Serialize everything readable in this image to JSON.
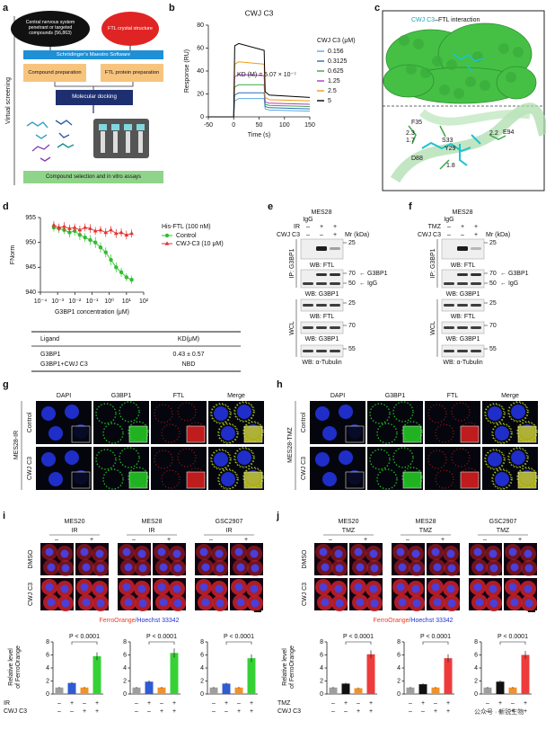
{
  "panel_a": {
    "letter": "a",
    "side_label": "Virtual screening",
    "nodes": [
      "Central nervous system penetrant or targeted compounds (56,863)",
      "FTL crystal structure",
      "Schrödinger's Maestro Software",
      "Compound preparation",
      "FTL protein preparation",
      "Molecular docking",
      "Compound selection and in vitro assays"
    ]
  },
  "panel_c": {
    "letter": "c",
    "title_parts": [
      "CWJ C3",
      "–FTL interaction"
    ],
    "labels": [
      "F35",
      "2.3",
      "1.7",
      "S33",
      "Y29",
      "D88",
      "1.8",
      "2.2",
      "E94"
    ]
  },
  "panel_d_table": {
    "header": [
      "Ligand",
      "KD(μM)"
    ],
    "rows": [
      [
        "G3BP1",
        "0.43 ± 0.57"
      ],
      [
        "G3BP1+CWJ C3",
        "NBD"
      ]
    ]
  },
  "panel_e": {
    "letter": "e",
    "cell": "MES28",
    "igg": "IgG",
    "treatment": {
      "label": "IR",
      "signs": [
        "–",
        "+",
        "+"
      ]
    },
    "drug": {
      "label": "CWJ C3",
      "signs": [
        "–",
        "–",
        "+"
      ]
    },
    "mr": "Mr (kDa)",
    "ip_label": "IP: G3BP1",
    "wcl_label": "WCL",
    "ip_blots": [
      {
        "markers": [
          "25"
        ],
        "wb": "WB: FTL"
      },
      {
        "markers": [
          "70",
          "50"
        ],
        "arrows": [
          "← G3BP1",
          "← IgG"
        ],
        "wb": "WB: G3BP1"
      }
    ],
    "wcl_blots": [
      {
        "markers": [
          "25"
        ],
        "wb": "WB: FTL"
      },
      {
        "markers": [
          "70"
        ],
        "wb": "WB: G3BP1"
      },
      {
        "markers": [
          "55"
        ],
        "wb": "WB: α-Tubulin"
      }
    ]
  },
  "panel_f": {
    "letter": "f",
    "cell": "MES28",
    "igg": "IgG",
    "treatment": {
      "label": "TMZ",
      "signs": [
        "–",
        "+",
        "+"
      ]
    },
    "drug": {
      "label": "CWJ C3",
      "signs": [
        "–",
        "–",
        "+"
      ]
    },
    "mr": "Mr (kDa)",
    "ip_label": "IP: G3BP1",
    "wcl_label": "WCL",
    "ip_blots": [
      {
        "markers": [
          "25"
        ],
        "wb": "WB: FTL"
      },
      {
        "markers": [
          "70",
          "50"
        ],
        "arrows": [
          "← G3BP1",
          "← IgG"
        ],
        "wb": "WB: G3BP1"
      }
    ],
    "wcl_blots": [
      {
        "markers": [
          "25"
        ],
        "wb": "WB: FTL"
      },
      {
        "markers": [
          "70"
        ],
        "wb": "WB: G3BP1"
      },
      {
        "markers": [
          "55"
        ],
        "wb": "WB: α-Tubulin"
      }
    ]
  },
  "panel_g": {
    "letter": "g",
    "group": "MES28-IR",
    "rows": [
      "Control",
      "CWJ C3"
    ],
    "columns": [
      "DAPI",
      "G3BP1",
      "FTL",
      "Merge"
    ],
    "column_colors": [
      "#2b3cff",
      "#1fbf1f",
      "#e02020",
      "#111111"
    ]
  },
  "panel_h": {
    "letter": "h",
    "group": "MES28-TMZ",
    "rows": [
      "Control",
      "CWJ C3"
    ],
    "columns": [
      "DAPI",
      "G3BP1",
      "FTL",
      "Merge"
    ],
    "column_colors": [
      "#2b3cff",
      "#1fbf1f",
      "#e02020",
      "#111111"
    ]
  },
  "panel_i": {
    "letter": "i",
    "cells": [
      "MES20",
      "MES28",
      "GSC2907"
    ],
    "treatment": "IR",
    "signs": [
      "–",
      "+"
    ],
    "rows": [
      "DMSO",
      "CWJ C3"
    ],
    "caption": [
      "FerroOrange",
      "/Hoechst 33342"
    ],
    "caption_colors": [
      "#e8402a",
      "#2233cc"
    ],
    "ylabel": [
      "Relative level",
      "of FerroOrange"
    ],
    "bar_rows": [
      "IR",
      "CWJ C3"
    ]
  },
  "panel_j": {
    "letter": "j",
    "cells": [
      "MES20",
      "MES28",
      "GSC2907"
    ],
    "treatment": "TMZ",
    "signs": [
      "–",
      "+"
    ],
    "rows": [
      "DMSO",
      "CWJ C3"
    ],
    "caption": [
      "FerroOrange",
      "/Hoechst 33342"
    ],
    "caption_colors": [
      "#e8402a",
      "#2233cc"
    ],
    "ylabel": [
      "Relative level",
      "of FerroOrange"
    ],
    "bar_rows": [
      "TMZ",
      "CWJ C3"
    ]
  },
  "watermark": "公众号 · 新锐生物",
  "chart_data": [
    {
      "type": "line",
      "letter": "b",
      "title": "CWJ C3",
      "xlabel": "Time (s)",
      "ylabel": "Response (RU)",
      "annotation": "KD (M) = 5.07 × 10⁻⁷",
      "legend_title": "CWJ C3 (μM)",
      "x": [
        -50,
        0,
        2,
        10,
        60,
        62,
        70,
        150
      ],
      "xlim": [
        -50,
        150
      ],
      "xticks": [
        -50,
        0,
        50,
        100,
        150
      ],
      "ylim": [
        0,
        80
      ],
      "yticks": [
        0,
        20,
        40,
        60,
        80
      ],
      "series": [
        {
          "name": "0.156",
          "color": "#5aa9e6",
          "values": [
            0,
            0,
            14,
            16,
            16,
            7,
            6,
            5
          ]
        },
        {
          "name": "0.3125",
          "color": "#2b6fb0",
          "values": [
            0,
            0,
            19,
            21,
            21,
            9,
            8,
            7
          ]
        },
        {
          "name": "0.625",
          "color": "#3aa845",
          "values": [
            0,
            0,
            26,
            28,
            28,
            11,
            10,
            9
          ]
        },
        {
          "name": "1.25",
          "color": "#b03ac8",
          "values": [
            0,
            0,
            35,
            37,
            36,
            13,
            12,
            11
          ]
        },
        {
          "name": "2.5",
          "color": "#f39c12",
          "values": [
            0,
            0,
            46,
            48,
            46,
            17,
            15,
            14
          ]
        },
        {
          "name": "5",
          "color": "#000000",
          "values": [
            0,
            0,
            62,
            64,
            58,
            22,
            19,
            17
          ]
        }
      ]
    },
    {
      "type": "scatter",
      "letter": "d",
      "xlabel": "G3BP1 concentration (μM)",
      "ylabel": "FNorm",
      "legend_title": "His-FTL (100 nM)",
      "xscale": "log",
      "x": [
        0.0006,
        0.0012,
        0.0024,
        0.0049,
        0.0098,
        0.0195,
        0.039,
        0.078,
        0.156,
        0.3125,
        0.625,
        1.25,
        2.5,
        5,
        10,
        20
      ],
      "xlim": [
        0.0001,
        100
      ],
      "xticks": [
        {
          "value": 0.0001,
          "label": "10⁻⁴"
        },
        {
          "value": 0.001,
          "label": "10⁻³"
        },
        {
          "value": 0.01,
          "label": "10⁻²"
        },
        {
          "value": 0.1,
          "label": "10⁻¹"
        },
        {
          "value": 1,
          "label": "10⁰"
        },
        {
          "value": 10,
          "label": "10¹"
        },
        {
          "value": 100,
          "label": "10²"
        }
      ],
      "ylim": [
        940,
        955
      ],
      "yticks": [
        940,
        945,
        950,
        955
      ],
      "series": [
        {
          "name": "Control",
          "color": "#2fbf2f",
          "marker": "circle",
          "values": [
            953,
            952.8,
            952.5,
            952,
            952.3,
            951.5,
            951,
            950.5,
            950,
            949,
            948,
            946.5,
            945,
            944,
            943,
            942.5
          ],
          "errors": [
            0.8,
            0.9,
            0.8,
            1,
            0.9,
            1,
            0.9,
            1,
            1.1,
            1,
            1,
            1.1,
            1,
            0.9,
            0.8,
            0.8
          ]
        },
        {
          "name": "CWJ-C3 (10 μM)",
          "color": "#e53030",
          "marker": "triangle",
          "values": [
            953.5,
            953,
            953.2,
            952.8,
            953,
            952.5,
            953,
            952.8,
            952.3,
            952.5,
            952,
            952.5,
            951.8,
            952,
            951.5,
            951.8
          ],
          "errors": [
            0.8,
            0.8,
            0.9,
            0.8,
            0.8,
            0.9,
            0.8,
            0.9,
            0.8,
            0.8,
            0.9,
            0.8,
            0.9,
            0.8,
            0.9,
            0.8
          ]
        }
      ]
    },
    {
      "type": "bar",
      "ylim": [
        0,
        8
      ],
      "yticks": [
        0,
        2,
        4,
        6,
        8
      ],
      "annotation": "P < 0.0001",
      "values": [
        1.0,
        1.7,
        1.0,
        5.8
      ],
      "errors": [
        0.1,
        0.15,
        0.1,
        0.6
      ],
      "colors": [
        "#9e9e9e",
        "#2f5bd3",
        "#f0922b",
        "#35d135"
      ],
      "sign_rows": [
        [
          "–",
          "+",
          "–",
          "+"
        ],
        [
          "–",
          "–",
          "+",
          "+"
        ]
      ]
    },
    {
      "type": "bar",
      "ylim": [
        0,
        8
      ],
      "yticks": [
        0,
        2,
        4,
        6,
        8
      ],
      "annotation": "P < 0.0001",
      "values": [
        1.0,
        1.9,
        1.0,
        6.3
      ],
      "errors": [
        0.1,
        0.2,
        0.1,
        0.7
      ],
      "colors": [
        "#9e9e9e",
        "#2f5bd3",
        "#f0922b",
        "#35d135"
      ],
      "sign_rows": [
        [
          "–",
          "+",
          "–",
          "+"
        ],
        [
          "–",
          "–",
          "+",
          "+"
        ]
      ]
    },
    {
      "type": "bar",
      "ylim": [
        0,
        8
      ],
      "yticks": [
        0,
        2,
        4,
        6,
        8
      ],
      "annotation": "P < 0.0001",
      "values": [
        1.0,
        1.6,
        1.0,
        5.5
      ],
      "errors": [
        0.1,
        0.15,
        0.1,
        0.6
      ],
      "colors": [
        "#9e9e9e",
        "#2f5bd3",
        "#f0922b",
        "#35d135"
      ],
      "sign_rows": [
        [
          "–",
          "+",
          "–",
          "+"
        ],
        [
          "–",
          "–",
          "+",
          "+"
        ]
      ]
    },
    {
      "type": "bar",
      "ylim": [
        0,
        8
      ],
      "yticks": [
        0,
        2,
        4,
        6,
        8
      ],
      "annotation": "P < 0.0001",
      "values": [
        1.0,
        1.6,
        0.9,
        6.1
      ],
      "errors": [
        0.1,
        0.15,
        0.1,
        0.6
      ],
      "colors": [
        "#9e9e9e",
        "#111111",
        "#f0922b",
        "#ee3b3b"
      ],
      "sign_rows": [
        [
          "–",
          "+",
          "–",
          "+"
        ],
        [
          "–",
          "–",
          "+",
          "+"
        ]
      ]
    },
    {
      "type": "bar",
      "ylim": [
        0,
        8
      ],
      "yticks": [
        0,
        2,
        4,
        6,
        8
      ],
      "annotation": "P < 0.0001",
      "values": [
        1.0,
        1.5,
        1.0,
        5.5
      ],
      "errors": [
        0.1,
        0.15,
        0.1,
        0.6
      ],
      "colors": [
        "#9e9e9e",
        "#111111",
        "#f0922b",
        "#ee3b3b"
      ],
      "sign_rows": [
        [
          "–",
          "+",
          "–",
          "+"
        ],
        [
          "–",
          "–",
          "+",
          "+"
        ]
      ]
    },
    {
      "type": "bar",
      "ylim": [
        0,
        8
      ],
      "yticks": [
        0,
        2,
        4,
        6,
        8
      ],
      "annotation": "P < 0.0001",
      "values": [
        1.0,
        1.9,
        1.0,
        6.0
      ],
      "errors": [
        0.1,
        0.2,
        0.1,
        0.6
      ],
      "colors": [
        "#9e9e9e",
        "#111111",
        "#f0922b",
        "#ee3b3b"
      ],
      "sign_rows": [
        [
          "–",
          "+",
          "–",
          "+"
        ],
        [
          "–",
          "–",
          "+",
          "+"
        ]
      ]
    }
  ]
}
